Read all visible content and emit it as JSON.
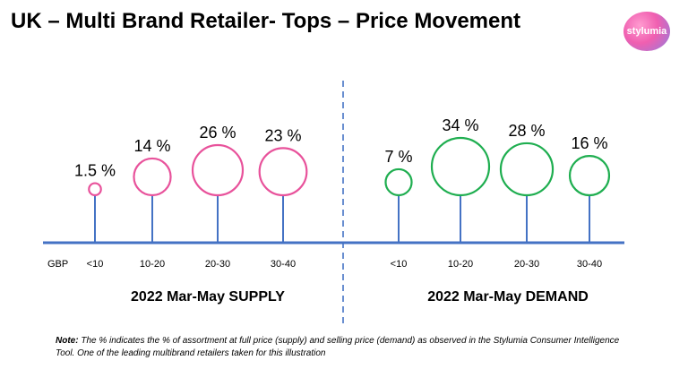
{
  "title": "UK – Multi Brand Retailer- Tops – Price Movement",
  "logo_text": "stylumia",
  "note": {
    "label": "Note:",
    "text": " The % indicates the % of assortment at full price (supply) and selling price (demand) as observed in the Stylumia Consumer Intelligence Tool. One of the leading multibrand retailers taken for this illustration"
  },
  "colors": {
    "axis": "#4472c4",
    "supply": "#e8529b",
    "demand": "#1fae50"
  },
  "chart_data": {
    "type": "bubble-lollipop",
    "currency_label": "GBP",
    "categories": [
      "<10",
      "10-20",
      "20-30",
      "30-40"
    ],
    "series": [
      {
        "name": "2022 Mar-May SUPPLY",
        "values": [
          1.5,
          14,
          26,
          23
        ],
        "labels": [
          "1.5 %",
          "14 %",
          "26 %",
          "23 %"
        ]
      },
      {
        "name": "2022 Mar-May DEMAND",
        "values": [
          7,
          34,
          28,
          16
        ],
        "labels": [
          "7 %",
          "34 %",
          "28 %",
          "16 %"
        ]
      }
    ]
  }
}
